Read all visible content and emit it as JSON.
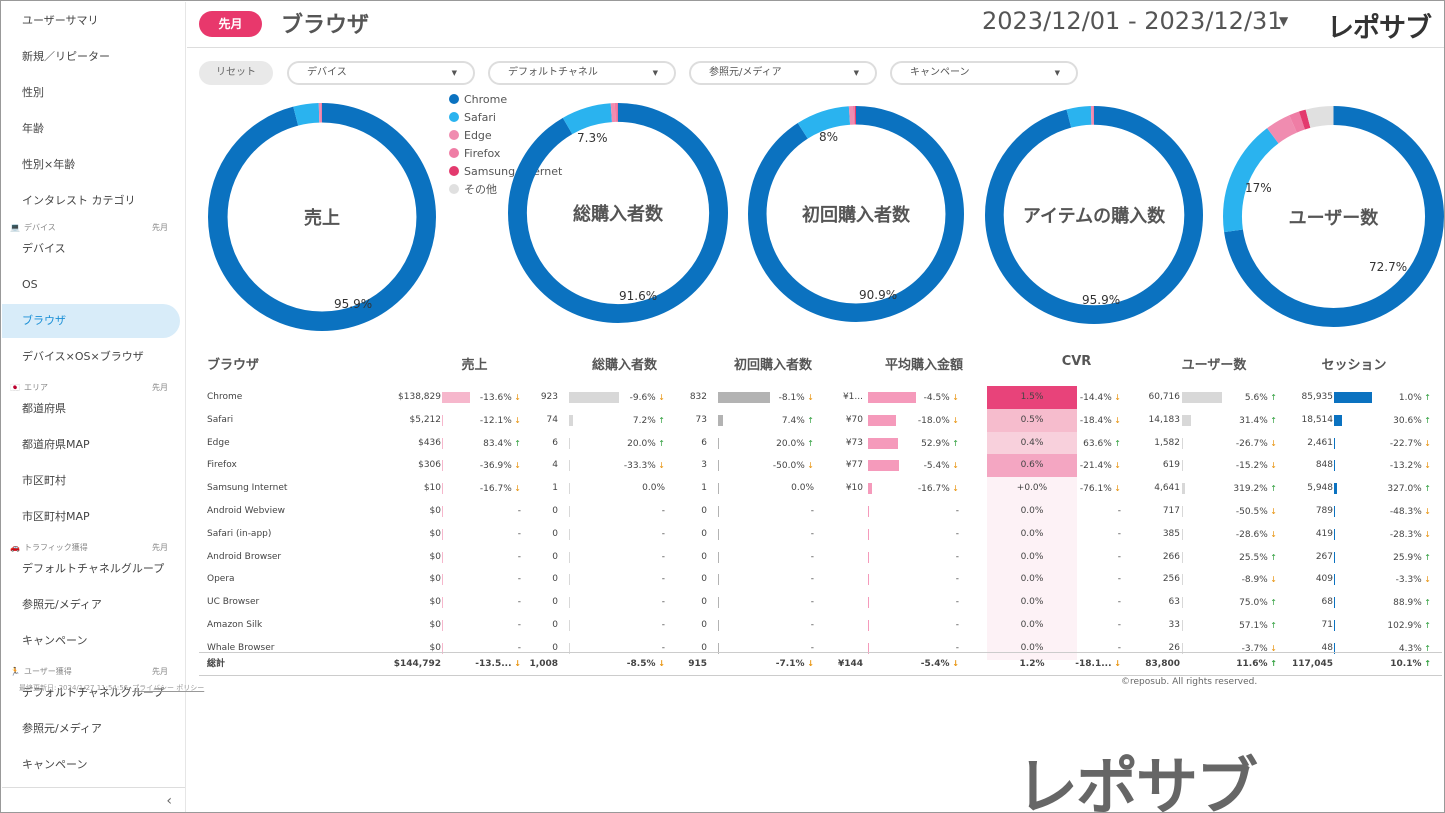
{
  "sidebar": {
    "items_a": [
      "ユーザーサマリ",
      "新規／リピーター",
      "性別",
      "年齢",
      "性別×年齢",
      "インタレスト カテゴリ"
    ],
    "sections": [
      {
        "icon": "💻",
        "title": "デバイス",
        "tag": "先月",
        "items": [
          "デバイス",
          "OS",
          "ブラウザ",
          "デバイス×OS×ブラウザ"
        ]
      },
      {
        "icon": "🇯🇵",
        "title": "エリア",
        "tag": "先月",
        "items": [
          "都道府県",
          "都道府県MAP",
          "市区町村",
          "市区町村MAP"
        ]
      },
      {
        "icon": "🚗",
        "title": "トラフィック獲得",
        "tag": "先月",
        "items": [
          "デフォルトチャネルグループ",
          "参照元/メディア",
          "キャンペーン"
        ]
      },
      {
        "icon": "🏃",
        "title": "ユーザー獲得",
        "tag": "先月",
        "items": [
          "デフォルトチャネルグループ",
          "参照元/メディア",
          "キャンペーン"
        ]
      }
    ],
    "collapse": "‹"
  },
  "header": {
    "period": "先月",
    "title": "ブラウザ",
    "date_range": "2023/12/01 - 2023/12/31",
    "caret": "▼",
    "logo": "レポサブ"
  },
  "filters": {
    "reset": "リセット",
    "items": [
      "デバイス",
      "デフォルトチャネル",
      "参照元/メディア",
      "キャンペーン"
    ]
  },
  "legend": [
    {
      "name": "Chrome",
      "color": "#0b72c0"
    },
    {
      "name": "Safari",
      "color": "#2ab3ef"
    },
    {
      "name": "Edge",
      "color": "#f08cb0"
    },
    {
      "name": "Firefox",
      "color": "#ef7da5"
    },
    {
      "name": "Samsung Internet",
      "color": "#e33a6e"
    },
    {
      "name": "その他",
      "color": "#e0e0e0"
    }
  ],
  "donuts": [
    {
      "label": "売上",
      "slices": [
        95.9,
        3.6,
        0.3,
        0.2,
        0.0,
        0.0
      ],
      "pcts": [
        {
          "t": "95.9%"
        }
      ]
    },
    {
      "label": "総購入者数",
      "slices": [
        91.6,
        7.3,
        0.6,
        0.4,
        0.1,
        0.0
      ],
      "pcts": [
        {
          "t": "7.3%"
        },
        {
          "t": "91.6%"
        }
      ]
    },
    {
      "label": "初回購入者数",
      "slices": [
        90.9,
        8.0,
        0.6,
        0.3,
        0.2,
        0.0
      ],
      "pcts": [
        {
          "t": "8%"
        },
        {
          "t": "90.9%"
        }
      ]
    },
    {
      "label": "アイテムの購入数",
      "slices": [
        95.9,
        3.6,
        0.3,
        0.2,
        0.0,
        0.0
      ],
      "pcts": [
        {
          "t": "95.9%"
        }
      ]
    },
    {
      "label": "ユーザー数",
      "slices": [
        72.7,
        17.0,
        3.7,
        1.5,
        1.0,
        4.1
      ],
      "pcts": [
        {
          "t": "17%"
        },
        {
          "t": "72.7%"
        }
      ]
    }
  ],
  "table": {
    "headers": [
      "ブラウザ",
      "売上",
      "総購入者数",
      "初回購入者数",
      "平均購入金額",
      "CVR",
      "ユーザー数",
      "セッション"
    ],
    "rows": [
      [
        "Chrome",
        "$138,829",
        "-13.6%",
        "923",
        "-9.6%",
        "832",
        "-8.1%",
        "¥1...",
        "-4.5%",
        "1.5%",
        "-14.4%",
        "60,716",
        "5.6%",
        "85,935",
        "1.0%"
      ],
      [
        "Safari",
        "$5,212",
        "-12.1%",
        "74",
        "7.2%",
        "73",
        "7.4%",
        "¥70",
        "-18.0%",
        "0.5%",
        "-18.4%",
        "14,183",
        "31.4%",
        "18,514",
        "30.6%"
      ],
      [
        "Edge",
        "$436",
        "83.4%",
        "6",
        "20.0%",
        "6",
        "20.0%",
        "¥73",
        "52.9%",
        "0.4%",
        "63.6%",
        "1,582",
        "-26.7%",
        "2,461",
        "-22.7%"
      ],
      [
        "Firefox",
        "$306",
        "-36.9%",
        "4",
        "-33.3%",
        "3",
        "-50.0%",
        "¥77",
        "-5.4%",
        "0.6%",
        "-21.4%",
        "619",
        "-15.2%",
        "848",
        "-13.2%"
      ],
      [
        "Samsung Internet",
        "$10",
        "-16.7%",
        "1",
        "0.0%",
        "1",
        "0.0%",
        "¥10",
        "-16.7%",
        "+0.0%",
        "-76.1%",
        "4,641",
        "319.2%",
        "5,948",
        "327.0%"
      ],
      [
        "Android Webview",
        "$0",
        "-",
        "0",
        "-",
        "0",
        "-",
        "",
        "-",
        "0.0%",
        "-",
        "717",
        "-50.5%",
        "789",
        "-48.3%"
      ],
      [
        "Safari (in-app)",
        "$0",
        "-",
        "0",
        "-",
        "0",
        "-",
        "",
        "-",
        "0.0%",
        "-",
        "385",
        "-28.6%",
        "419",
        "-28.3%"
      ],
      [
        "Android Browser",
        "$0",
        "-",
        "0",
        "-",
        "0",
        "-",
        "",
        "-",
        "0.0%",
        "-",
        "266",
        "25.5%",
        "267",
        "25.9%"
      ],
      [
        "Opera",
        "$0",
        "-",
        "0",
        "-",
        "0",
        "-",
        "",
        "-",
        "0.0%",
        "-",
        "256",
        "-8.9%",
        "409",
        "-3.3%"
      ],
      [
        "UC Browser",
        "$0",
        "-",
        "0",
        "-",
        "0",
        "-",
        "",
        "-",
        "0.0%",
        "-",
        "63",
        "75.0%",
        "68",
        "88.9%"
      ],
      [
        "Amazon Silk",
        "$0",
        "-",
        "0",
        "-",
        "0",
        "-",
        "",
        "-",
        "0.0%",
        "-",
        "33",
        "57.1%",
        "71",
        "102.9%"
      ],
      [
        "Whale Browser",
        "$0",
        "-",
        "0",
        "-",
        "0",
        "-",
        "",
        "-",
        "0.0%",
        "-",
        "26",
        "-3.7%",
        "48",
        "4.3%"
      ]
    ],
    "total": [
      "総計",
      "$144,792",
      "-13.5...",
      "1,008",
      "-8.5%",
      "915",
      "-7.1%",
      "¥144",
      "-5.4%",
      "1.2%",
      "-18.1...",
      "83,800",
      "11.6%",
      "117,045",
      "10.1%"
    ]
  },
  "footer": {
    "updated": "最終更新日: 2024/1/27 11:54:56",
    "privacy": "プライバシー ポリシー",
    "copyright": "©reposub. All rights reserved.",
    "big_logo": "レポサブ"
  }
}
